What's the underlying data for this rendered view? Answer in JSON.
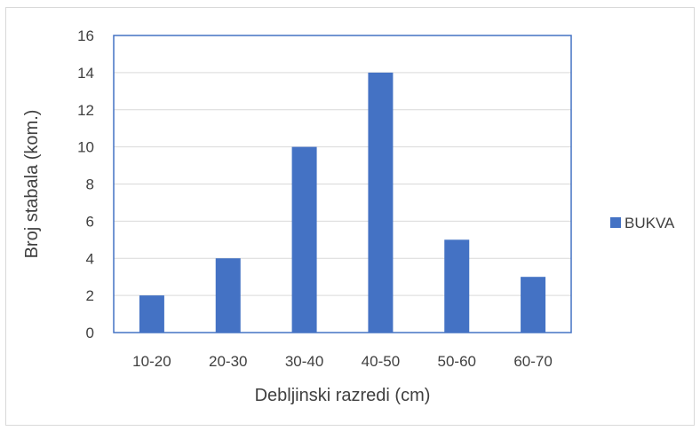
{
  "chart_data": {
    "type": "bar",
    "categories": [
      "10-20",
      "20-30",
      "30-40",
      "40-50",
      "50-60",
      "60-70"
    ],
    "series": [
      {
        "name": "BUKVA",
        "values": [
          2,
          4,
          10,
          14,
          5,
          3
        ],
        "color": "#4472C4"
      }
    ],
    "xlabel": "Debljinski razredi (cm)",
    "ylabel": "Broj stabala (kom.)",
    "ylim": [
      0,
      16
    ],
    "yticks": [
      0,
      2,
      4,
      6,
      8,
      10,
      12,
      14,
      16
    ],
    "grid": true,
    "legend_position": "right"
  }
}
